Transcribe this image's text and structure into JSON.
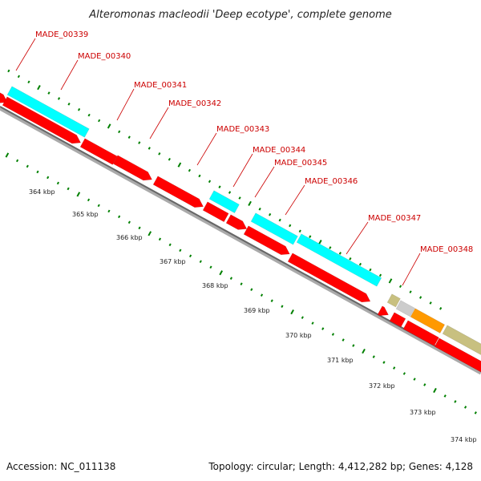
{
  "title": "Alteromonas macleodii 'Deep ecotype', complete genome",
  "footer": {
    "accession": "Accession: NC_011138",
    "stats": "Topology: circular; Length: 4,412,282 bp; Genes: 4,128"
  },
  "colors": {
    "cds": "#ff0000",
    "other_feature": "#00ffff",
    "gc_skew_tick": "#008000",
    "backbone_dark": "#666666",
    "backbone_light": "#aaaaaa",
    "label": "#cc0000",
    "olive_feature": "#c8c080",
    "orange_feature": "#ff9900",
    "gray_feature": "#cccccc"
  },
  "gene_labels": [
    "MADE_00339",
    "MADE_00340",
    "MADE_00341",
    "MADE_00342",
    "MADE_00343",
    "MADE_00344",
    "MADE_00345",
    "MADE_00346",
    "MADE_00347",
    "MADE_00348"
  ],
  "kbp_ticks": [
    "364 kbp",
    "365 kbp",
    "366 kbp",
    "367 kbp",
    "368 kbp",
    "369 kbp",
    "370 kbp",
    "371 kbp",
    "372 kbp",
    "373 kbp",
    "374 kbp"
  ]
}
